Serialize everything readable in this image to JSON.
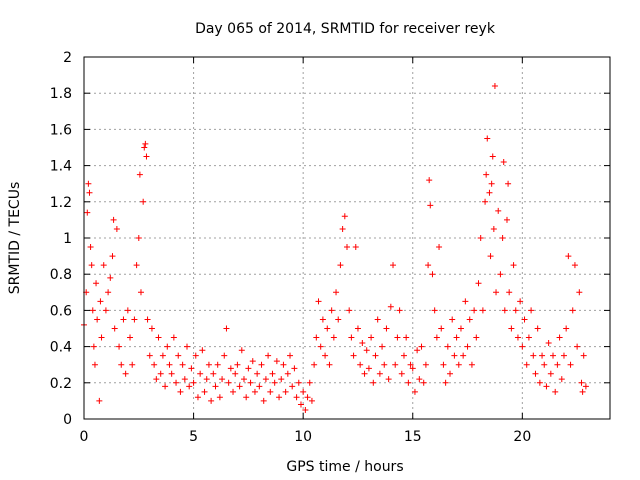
{
  "chart_data": {
    "type": "scatter",
    "title": "Day 065 of 2014, SRMTID for receiver reyk",
    "xlabel": "GPS time / hours",
    "ylabel": "SRMTID / TECUs",
    "xlim": [
      0,
      24
    ],
    "ylim": [
      0,
      2
    ],
    "xticks": [
      0,
      5,
      10,
      15,
      20
    ],
    "xtick_labels": [
      "0",
      "5",
      "10",
      "15",
      "20"
    ],
    "yticks": [
      0,
      0.2,
      0.4,
      0.6,
      0.8,
      1,
      1.2,
      1.4,
      1.6,
      1.8,
      2
    ],
    "ytick_labels": [
      "0",
      "0.2",
      "0.4",
      "0.6",
      "0.8",
      "1",
      "1.2",
      "1.4",
      "1.6",
      "1.8",
      "2"
    ],
    "grid": true,
    "marker": "+",
    "color": "#ff0000",
    "series": [
      {
        "name": "reyk",
        "points": [
          [
            0.0,
            0.52
          ],
          [
            0.1,
            0.7
          ],
          [
            0.15,
            1.14
          ],
          [
            0.2,
            1.3
          ],
          [
            0.25,
            1.25
          ],
          [
            0.3,
            0.95
          ],
          [
            0.35,
            0.85
          ],
          [
            0.4,
            0.6
          ],
          [
            0.45,
            0.4
          ],
          [
            0.5,
            0.3
          ],
          [
            0.55,
            0.75
          ],
          [
            0.6,
            0.55
          ],
          [
            0.7,
            0.1
          ],
          [
            0.75,
            0.65
          ],
          [
            0.8,
            0.45
          ],
          [
            0.9,
            0.85
          ],
          [
            1.0,
            0.6
          ],
          [
            1.1,
            0.7
          ],
          [
            1.2,
            0.78
          ],
          [
            1.3,
            0.9
          ],
          [
            1.35,
            1.1
          ],
          [
            1.4,
            0.5
          ],
          [
            1.5,
            1.05
          ],
          [
            1.6,
            0.4
          ],
          [
            1.7,
            0.3
          ],
          [
            1.8,
            0.55
          ],
          [
            1.9,
            0.25
          ],
          [
            2.0,
            0.6
          ],
          [
            2.1,
            0.45
          ],
          [
            2.2,
            0.3
          ],
          [
            2.3,
            0.55
          ],
          [
            2.4,
            0.85
          ],
          [
            2.5,
            1.0
          ],
          [
            2.55,
            1.35
          ],
          [
            2.6,
            0.7
          ],
          [
            2.7,
            1.2
          ],
          [
            2.75,
            1.5
          ],
          [
            2.8,
            1.52
          ],
          [
            2.85,
            1.45
          ],
          [
            2.9,
            0.55
          ],
          [
            3.0,
            0.35
          ],
          [
            3.1,
            0.5
          ],
          [
            3.2,
            0.3
          ],
          [
            3.3,
            0.22
          ],
          [
            3.4,
            0.45
          ],
          [
            3.5,
            0.25
          ],
          [
            3.6,
            0.35
          ],
          [
            3.7,
            0.18
          ],
          [
            3.8,
            0.4
          ],
          [
            3.9,
            0.3
          ],
          [
            4.0,
            0.25
          ],
          [
            4.1,
            0.45
          ],
          [
            4.2,
            0.2
          ],
          [
            4.3,
            0.35
          ],
          [
            4.4,
            0.15
          ],
          [
            4.5,
            0.3
          ],
          [
            4.6,
            0.22
          ],
          [
            4.7,
            0.4
          ],
          [
            4.8,
            0.18
          ],
          [
            4.9,
            0.28
          ],
          [
            5.0,
            0.2
          ],
          [
            5.1,
            0.35
          ],
          [
            5.2,
            0.12
          ],
          [
            5.3,
            0.25
          ],
          [
            5.4,
            0.38
          ],
          [
            5.5,
            0.15
          ],
          [
            5.6,
            0.22
          ],
          [
            5.7,
            0.3
          ],
          [
            5.8,
            0.1
          ],
          [
            5.9,
            0.25
          ],
          [
            6.0,
            0.18
          ],
          [
            6.1,
            0.3
          ],
          [
            6.2,
            0.12
          ],
          [
            6.3,
            0.22
          ],
          [
            6.4,
            0.35
          ],
          [
            6.5,
            0.5
          ],
          [
            6.6,
            0.2
          ],
          [
            6.7,
            0.28
          ],
          [
            6.8,
            0.15
          ],
          [
            6.9,
            0.25
          ],
          [
            7.0,
            0.3
          ],
          [
            7.1,
            0.18
          ],
          [
            7.2,
            0.38
          ],
          [
            7.3,
            0.22
          ],
          [
            7.4,
            0.12
          ],
          [
            7.5,
            0.28
          ],
          [
            7.6,
            0.2
          ],
          [
            7.7,
            0.32
          ],
          [
            7.8,
            0.15
          ],
          [
            7.9,
            0.25
          ],
          [
            8.0,
            0.18
          ],
          [
            8.1,
            0.3
          ],
          [
            8.2,
            0.1
          ],
          [
            8.3,
            0.22
          ],
          [
            8.4,
            0.35
          ],
          [
            8.5,
            0.15
          ],
          [
            8.6,
            0.25
          ],
          [
            8.7,
            0.2
          ],
          [
            8.8,
            0.32
          ],
          [
            8.9,
            0.12
          ],
          [
            9.0,
            0.22
          ],
          [
            9.1,
            0.3
          ],
          [
            9.2,
            0.15
          ],
          [
            9.3,
            0.25
          ],
          [
            9.4,
            0.35
          ],
          [
            9.5,
            0.18
          ],
          [
            9.6,
            0.28
          ],
          [
            9.7,
            0.12
          ],
          [
            9.8,
            0.2
          ],
          [
            9.9,
            0.08
          ],
          [
            10.0,
            0.15
          ],
          [
            10.1,
            0.05
          ],
          [
            10.2,
            0.12
          ],
          [
            10.3,
            0.2
          ],
          [
            10.4,
            0.1
          ],
          [
            10.5,
            0.3
          ],
          [
            10.6,
            0.45
          ],
          [
            10.7,
            0.65
          ],
          [
            10.8,
            0.4
          ],
          [
            10.9,
            0.55
          ],
          [
            11.0,
            0.35
          ],
          [
            11.1,
            0.5
          ],
          [
            11.2,
            0.3
          ],
          [
            11.3,
            0.6
          ],
          [
            11.4,
            0.45
          ],
          [
            11.5,
            0.7
          ],
          [
            11.6,
            0.55
          ],
          [
            11.7,
            0.85
          ],
          [
            11.8,
            1.05
          ],
          [
            11.9,
            1.12
          ],
          [
            12.0,
            0.95
          ],
          [
            12.1,
            0.6
          ],
          [
            12.2,
            0.45
          ],
          [
            12.3,
            0.35
          ],
          [
            12.4,
            0.95
          ],
          [
            12.5,
            0.5
          ],
          [
            12.6,
            0.3
          ],
          [
            12.7,
            0.42
          ],
          [
            12.8,
            0.25
          ],
          [
            12.9,
            0.38
          ],
          [
            13.0,
            0.28
          ],
          [
            13.1,
            0.45
          ],
          [
            13.2,
            0.2
          ],
          [
            13.3,
            0.35
          ],
          [
            13.4,
            0.55
          ],
          [
            13.5,
            0.25
          ],
          [
            13.6,
            0.4
          ],
          [
            13.7,
            0.3
          ],
          [
            13.8,
            0.5
          ],
          [
            13.9,
            0.22
          ],
          [
            14.0,
            0.62
          ],
          [
            14.1,
            0.85
          ],
          [
            14.2,
            0.3
          ],
          [
            14.3,
            0.45
          ],
          [
            14.4,
            0.6
          ],
          [
            14.5,
            0.25
          ],
          [
            14.6,
            0.35
          ],
          [
            14.7,
            0.45
          ],
          [
            14.8,
            0.2
          ],
          [
            14.9,
            0.3
          ],
          [
            15.0,
            0.28
          ],
          [
            15.1,
            0.15
          ],
          [
            15.2,
            0.38
          ],
          [
            15.3,
            0.22
          ],
          [
            15.4,
            0.4
          ],
          [
            15.5,
            0.2
          ],
          [
            15.6,
            0.3
          ],
          [
            15.7,
            0.85
          ],
          [
            15.75,
            1.32
          ],
          [
            15.8,
            1.18
          ],
          [
            15.9,
            0.8
          ],
          [
            16.0,
            0.6
          ],
          [
            16.1,
            0.45
          ],
          [
            16.2,
            0.95
          ],
          [
            16.3,
            0.5
          ],
          [
            16.4,
            0.3
          ],
          [
            16.5,
            0.2
          ],
          [
            16.6,
            0.4
          ],
          [
            16.7,
            0.25
          ],
          [
            16.8,
            0.55
          ],
          [
            16.9,
            0.35
          ],
          [
            17.0,
            0.45
          ],
          [
            17.1,
            0.3
          ],
          [
            17.2,
            0.5
          ],
          [
            17.3,
            0.35
          ],
          [
            17.4,
            0.65
          ],
          [
            17.5,
            0.4
          ],
          [
            17.6,
            0.55
          ],
          [
            17.7,
            0.3
          ],
          [
            17.8,
            0.6
          ],
          [
            17.9,
            0.45
          ],
          [
            18.0,
            0.75
          ],
          [
            18.1,
            1.0
          ],
          [
            18.2,
            0.6
          ],
          [
            18.3,
            1.2
          ],
          [
            18.35,
            1.35
          ],
          [
            18.4,
            1.55
          ],
          [
            18.5,
            1.25
          ],
          [
            18.55,
            0.9
          ],
          [
            18.6,
            1.3
          ],
          [
            18.65,
            1.45
          ],
          [
            18.7,
            1.05
          ],
          [
            18.75,
            1.84
          ],
          [
            18.8,
            0.7
          ],
          [
            18.9,
            1.15
          ],
          [
            19.0,
            0.8
          ],
          [
            19.1,
            1.0
          ],
          [
            19.15,
            1.42
          ],
          [
            19.2,
            0.6
          ],
          [
            19.3,
            1.1
          ],
          [
            19.35,
            1.3
          ],
          [
            19.4,
            0.7
          ],
          [
            19.5,
            0.5
          ],
          [
            19.6,
            0.85
          ],
          [
            19.7,
            0.6
          ],
          [
            19.8,
            0.45
          ],
          [
            19.9,
            0.65
          ],
          [
            20.0,
            0.4
          ],
          [
            20.1,
            0.55
          ],
          [
            20.2,
            0.3
          ],
          [
            20.3,
            0.45
          ],
          [
            20.4,
            0.6
          ],
          [
            20.5,
            0.35
          ],
          [
            20.6,
            0.25
          ],
          [
            20.7,
            0.5
          ],
          [
            20.8,
            0.2
          ],
          [
            20.9,
            0.35
          ],
          [
            21.0,
            0.3
          ],
          [
            21.1,
            0.18
          ],
          [
            21.2,
            0.42
          ],
          [
            21.3,
            0.25
          ],
          [
            21.4,
            0.35
          ],
          [
            21.5,
            0.15
          ],
          [
            21.6,
            0.3
          ],
          [
            21.7,
            0.45
          ],
          [
            21.8,
            0.22
          ],
          [
            21.9,
            0.35
          ],
          [
            22.0,
            0.5
          ],
          [
            22.1,
            0.9
          ],
          [
            22.2,
            0.3
          ],
          [
            22.3,
            0.6
          ],
          [
            22.4,
            0.85
          ],
          [
            22.5,
            0.4
          ],
          [
            22.6,
            0.7
          ],
          [
            22.7,
            0.2
          ],
          [
            22.75,
            0.15
          ],
          [
            22.8,
            0.35
          ],
          [
            22.9,
            0.18
          ]
        ]
      }
    ]
  }
}
